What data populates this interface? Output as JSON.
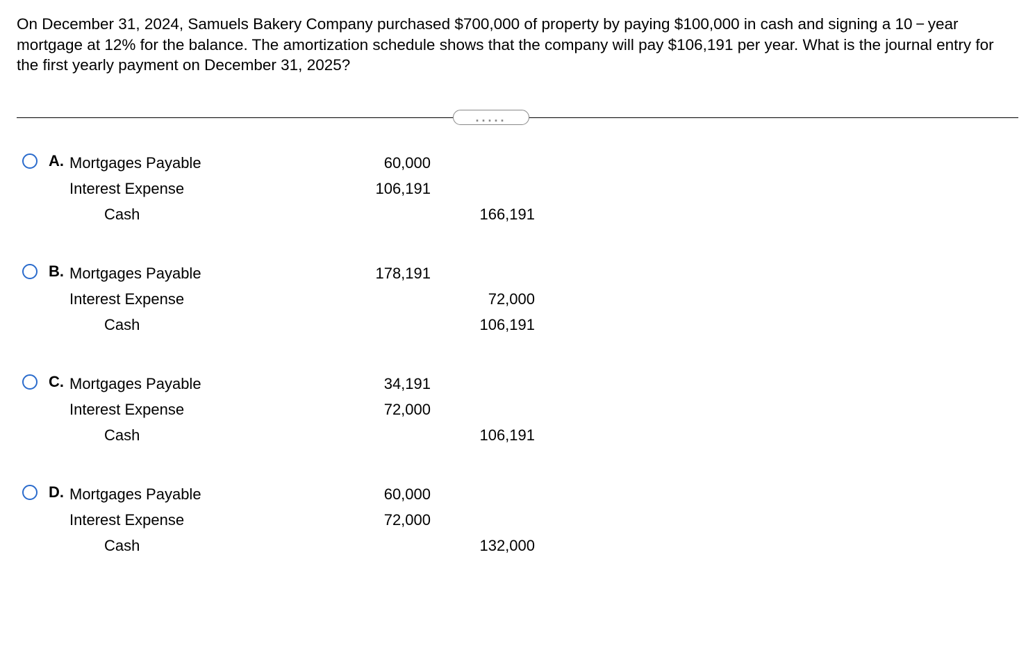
{
  "question_text": "On December 31, 2024, Samuels Bakery Company purchased $700,000 of property by paying $100,000 in cash and signing a 10 − year mortgage at 12% for the balance. The amortization schedule shows that the company will pay $106,191 per year. What is the journal entry for the first yearly payment on December 31, 2025?",
  "divider_dots": ".....",
  "options": [
    {
      "letter": "A.",
      "rows": [
        {
          "account": "Mortgages Payable",
          "debit": "60,000",
          "credit": "",
          "indent": false
        },
        {
          "account": "Interest Expense",
          "debit": "106,191",
          "credit": "",
          "indent": false
        },
        {
          "account": "Cash",
          "debit": "",
          "credit": "166,191",
          "indent": true
        }
      ],
      "credit_shift": false
    },
    {
      "letter": "B.",
      "rows": [
        {
          "account": "Mortgages Payable",
          "debit": "178,191",
          "credit": "",
          "indent": false
        },
        {
          "account": "Interest Expense",
          "debit": "",
          "credit": "72,000",
          "indent": false
        },
        {
          "account": "Cash",
          "debit": "",
          "credit": "106,191",
          "indent": true
        }
      ],
      "credit_shift": true
    },
    {
      "letter": "C.",
      "rows": [
        {
          "account": "Mortgages Payable",
          "debit": "34,191",
          "credit": "",
          "indent": false
        },
        {
          "account": "Interest Expense",
          "debit": "72,000",
          "credit": "",
          "indent": false
        },
        {
          "account": "Cash",
          "debit": "",
          "credit": "106,191",
          "indent": true
        }
      ],
      "credit_shift": false
    },
    {
      "letter": "D.",
      "rows": [
        {
          "account": "Mortgages Payable",
          "debit": "60,000",
          "credit": "",
          "indent": false
        },
        {
          "account": "Interest Expense",
          "debit": "72,000",
          "credit": "",
          "indent": false
        },
        {
          "account": "Cash",
          "debit": "",
          "credit": "132,000",
          "indent": true
        }
      ],
      "credit_shift": false
    }
  ]
}
